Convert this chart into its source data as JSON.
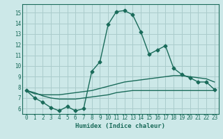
{
  "xlabel": "Humidex (Indice chaleur)",
  "bg_color": "#cce8e8",
  "grid_color": "#aacccc",
  "line_color": "#1a6b5a",
  "xlim": [
    -0.5,
    23.5
  ],
  "ylim": [
    5.5,
    15.8
  ],
  "xticks": [
    0,
    1,
    2,
    3,
    4,
    5,
    6,
    7,
    8,
    9,
    10,
    11,
    12,
    13,
    14,
    15,
    16,
    17,
    18,
    19,
    20,
    21,
    22,
    23
  ],
  "yticks": [
    6,
    7,
    8,
    9,
    10,
    11,
    12,
    13,
    14,
    15
  ],
  "line1_x": [
    0,
    1,
    2,
    3,
    4,
    5,
    6,
    7,
    8,
    9,
    10,
    11,
    12,
    13,
    14,
    15,
    16,
    17,
    18,
    19,
    20,
    21,
    22,
    23
  ],
  "line1_y": [
    7.7,
    7.0,
    6.6,
    6.1,
    5.8,
    6.2,
    5.8,
    6.0,
    9.5,
    10.4,
    13.9,
    15.1,
    15.2,
    14.8,
    13.2,
    11.1,
    11.5,
    11.9,
    9.8,
    9.2,
    8.9,
    8.5,
    8.5,
    7.8
  ],
  "line2_x": [
    0,
    1,
    2,
    3,
    4,
    5,
    6,
    7,
    8,
    9,
    10,
    11,
    12,
    13,
    14,
    15,
    16,
    17,
    18,
    19,
    20,
    21,
    22,
    23
  ],
  "line2_y": [
    7.7,
    7.4,
    7.3,
    7.3,
    7.3,
    7.4,
    7.5,
    7.6,
    7.7,
    7.9,
    8.1,
    8.3,
    8.5,
    8.6,
    8.7,
    8.8,
    8.9,
    9.0,
    9.1,
    9.1,
    9.0,
    8.9,
    8.8,
    8.5
  ],
  "line3_x": [
    0,
    1,
    2,
    3,
    4,
    5,
    6,
    7,
    8,
    9,
    10,
    11,
    12,
    13,
    14,
    15,
    16,
    17,
    18,
    19,
    20,
    21,
    22,
    23
  ],
  "line3_y": [
    7.7,
    7.5,
    7.2,
    7.0,
    6.9,
    6.9,
    6.9,
    7.0,
    7.1,
    7.2,
    7.3,
    7.5,
    7.6,
    7.7,
    7.7,
    7.7,
    7.7,
    7.7,
    7.7,
    7.7,
    7.7,
    7.7,
    7.7,
    7.7
  ],
  "tick_fontsize": 5.5,
  "xlabel_fontsize": 6.5
}
